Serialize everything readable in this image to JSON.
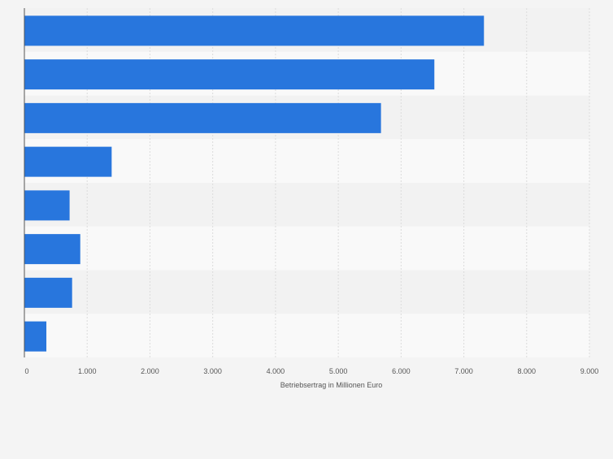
{
  "chart_data": {
    "type": "bar",
    "orientation": "horizontal",
    "title": "",
    "xlabel": "Betriebsertrag in Millionen Euro",
    "ylabel": "",
    "categories": [
      "",
      "",
      "",
      "",
      "",
      "",
      "",
      ""
    ],
    "values": [
      7320,
      6530,
      5680,
      1390,
      720,
      890,
      760,
      350
    ],
    "xlim": [
      0,
      9000
    ],
    "xticks": [
      0,
      1000,
      2000,
      3000,
      4000,
      5000,
      6000,
      7000,
      8000,
      9000
    ],
    "xtick_labels": [
      "0",
      "1.000",
      "2.000",
      "3.000",
      "4.000",
      "5.000",
      "6.000",
      "7.000",
      "8.000",
      "9.000"
    ],
    "grid": "vertical",
    "legend": "none",
    "colors": {
      "bar": "#2876dd",
      "band_dark": "#f2f2f2",
      "band_light": "#f9f9f9",
      "grid": "#dcdcdc",
      "axis": "#555555",
      "tick_text": "#555555",
      "background": "#f4f4f4"
    }
  }
}
